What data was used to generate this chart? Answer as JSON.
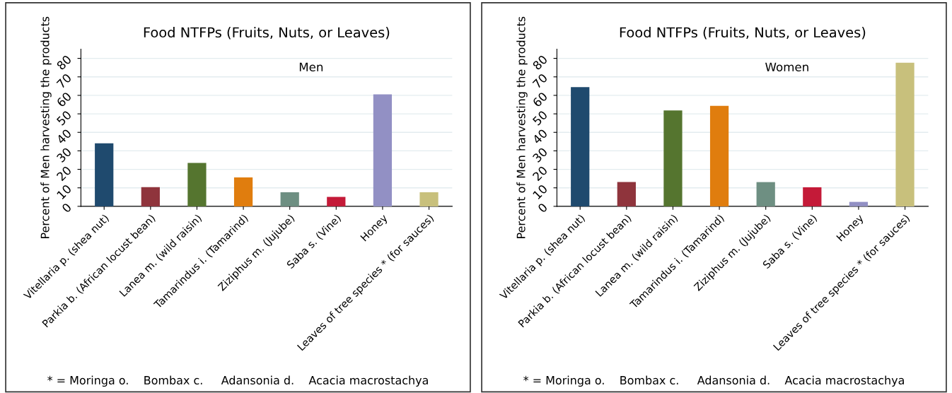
{
  "chart_data": [
    {
      "type": "bar",
      "title": "Food NTFPs (Fruits, Nuts, or Leaves)",
      "ylabel": "Percent of Men harvesting the products",
      "categories": [
        "Vitellaria p. (shea nut)",
        "Parkia b. (African locust bean)",
        "Lanea m. (wild raisin)",
        "Tamarindus i. (Tamarind)",
        "Ziziphus m. (Jujube)",
        "Saba s. (Vine)",
        "Honey",
        "Leaves of tree species * (for sauces)"
      ],
      "values": [
        34.1,
        10.4,
        23.5,
        15.6,
        7.6,
        5.1,
        60.5,
        7.6
      ],
      "colors": [
        "#1f4a6e",
        "#8f343c",
        "#55752f",
        "#e07d0e",
        "#6e8f82",
        "#c41a38",
        "#9290c4",
        "#c8c07c"
      ],
      "ylim": [
        0,
        85
      ],
      "yticks": [
        0,
        10,
        20,
        30,
        40,
        50,
        60,
        70,
        80
      ],
      "grid": "y",
      "annotations": [
        "Men",
        "* = Moringa o.    Bombax c.     Adansonia d.    Acacia macrostachya"
      ]
    },
    {
      "type": "bar",
      "title": "Food NTFPs (Fruits, Nuts, or Leaves)",
      "ylabel": "Percent of Men harvesting the products",
      "categories": [
        "Vitellaria p. (shea nut)",
        "Parkia b. (African locust bean)",
        "Lanea m. (wild raisin)",
        "Tamarindus i. (Tamarind)",
        "Ziziphus m. (Jujube)",
        "Saba s. (Vine)",
        "Honey",
        "Leaves of tree species * (for sauces)"
      ],
      "values": [
        64.5,
        13.1,
        51.8,
        54.3,
        13.1,
        10.3,
        2.4,
        77.6
      ],
      "colors": [
        "#1f4a6e",
        "#8f343c",
        "#55752f",
        "#e07d0e",
        "#6e8f82",
        "#c41a38",
        "#9290c4",
        "#c8c07c"
      ],
      "ylim": [
        0,
        85
      ],
      "yticks": [
        0,
        10,
        20,
        30,
        40,
        50,
        60,
        70,
        80
      ],
      "grid": "y",
      "annotations": [
        "Women",
        "* = Moringa o.    Bombax c.     Adansonia d.    Acacia macrostachya"
      ]
    }
  ]
}
